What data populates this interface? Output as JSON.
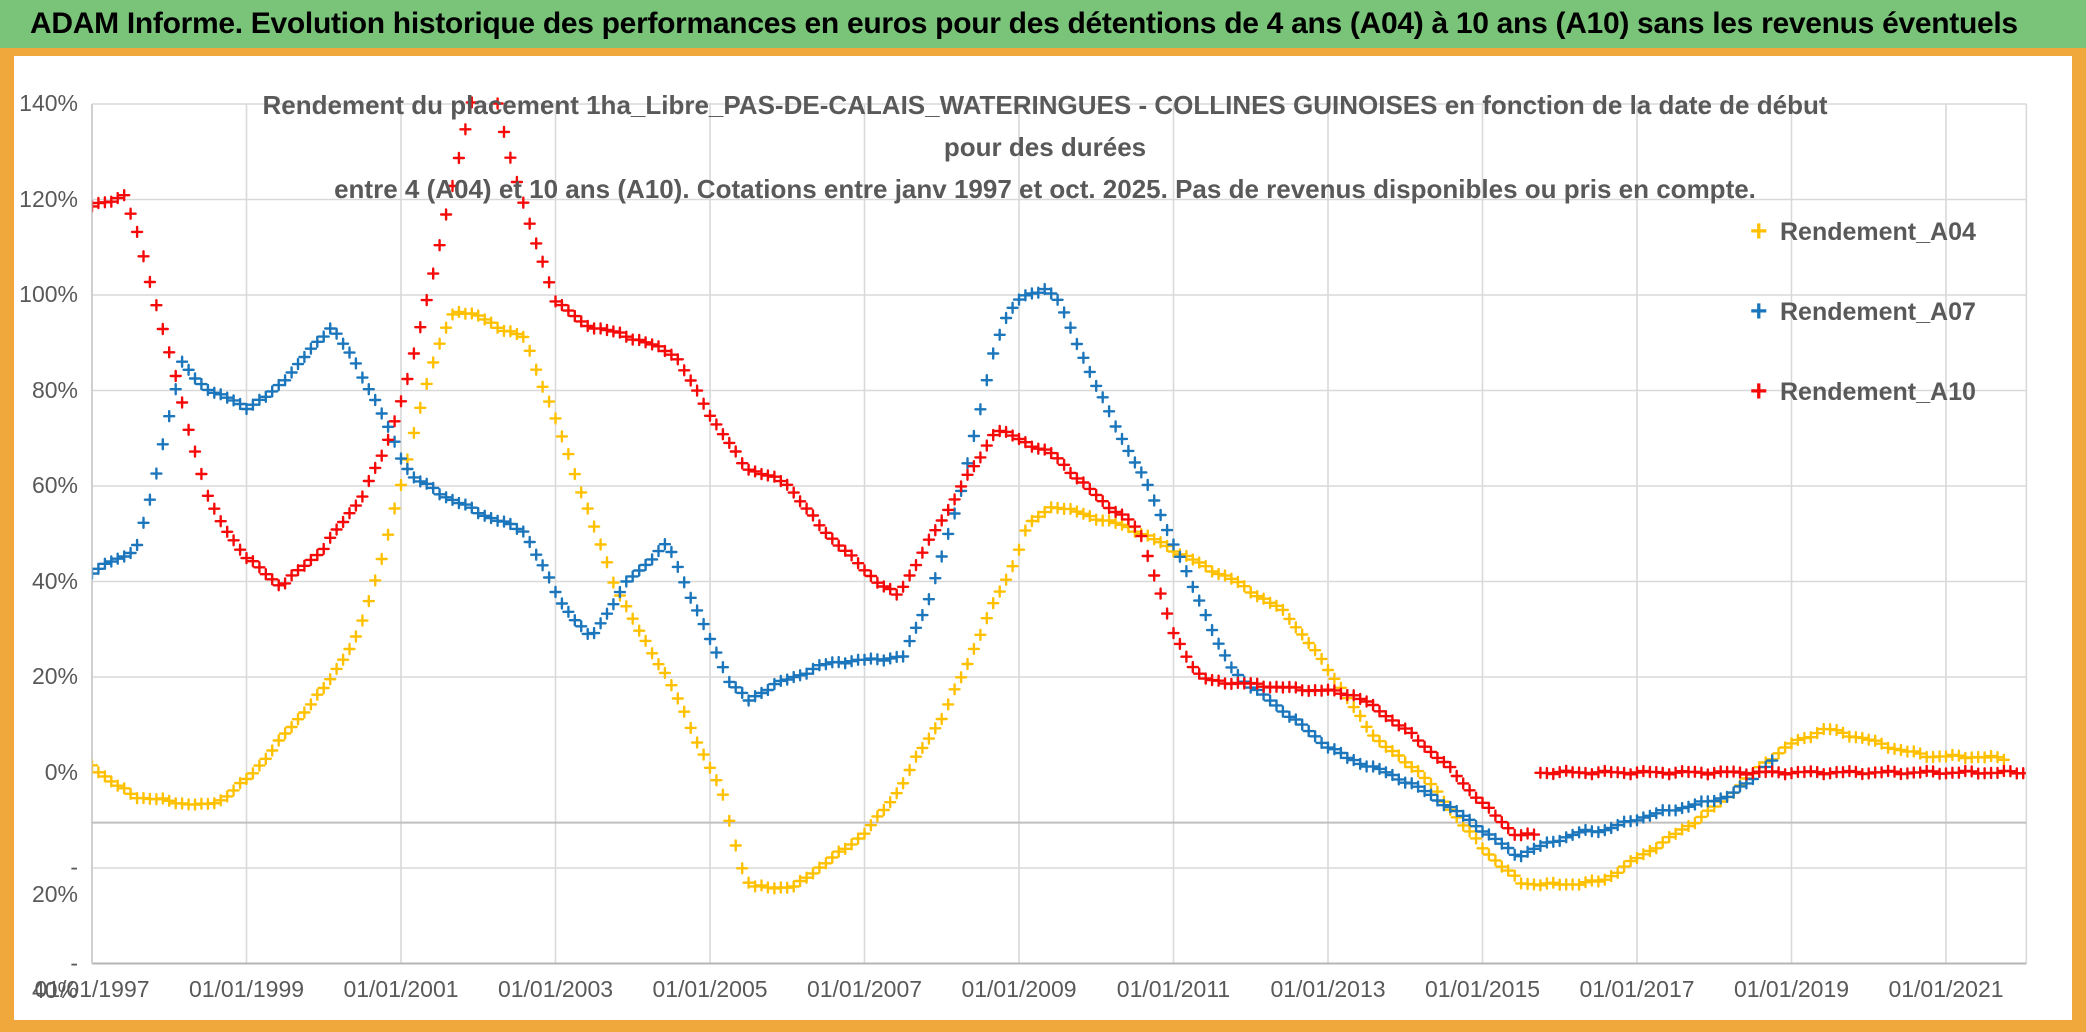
{
  "header": {
    "title": "ADAM Informe. Evolution historique des performances en euros pour des détentions de 4 ans (A04) à 10 ans (A10) sans les revenus éventuels",
    "bg_color": "#7AC47A"
  },
  "frame_color": "#F0A73C",
  "chart_data": {
    "type": "scatter",
    "marker": "+",
    "title_line1": "Rendement du placement 1ha_Libre_PAS-DE-CALAIS_WATERINGUES - COLLINES GUINOISES en fonction de la date de début pour des durées",
    "title_line2": "entre 4 (A04) et 10 ans (A10). Cotations entre janv 1997 et oct. 2025. Pas de revenus disponibles ou pris en compte.",
    "text_color": "#595959",
    "gridline_color": "#D9D9D9",
    "axis_line_color": "#BFBFBF",
    "legend_position": "right",
    "x_axis": {
      "tick_labels": [
        "01/01/1997",
        "01/01/1999",
        "01/01/2001",
        "01/01/2003",
        "01/01/2005",
        "01/01/2007",
        "01/01/2009",
        "01/01/2011",
        "01/01/2013",
        "01/01/2015",
        "01/01/2017",
        "01/01/2019",
        "01/01/2021"
      ],
      "tick_years": [
        1997,
        1999,
        2001,
        2003,
        2005,
        2007,
        2009,
        2011,
        2013,
        2015,
        2017,
        2019,
        2021
      ],
      "min_year": 1997.0,
      "max_year": 2022.04
    },
    "y_axis": {
      "tick_labels": [
        "140%",
        "120%",
        "100%",
        "80%",
        "60%",
        "40%",
        "20%",
        "0%",
        "- 20%",
        "- 40%"
      ],
      "tick_values": [
        140,
        120,
        100,
        80,
        60,
        40,
        20,
        0,
        -20,
        -40
      ],
      "gridline_values": [
        140,
        120,
        100,
        80,
        60,
        40,
        20,
        -20,
        -40
      ],
      "extra_axis_line_value": -10.5,
      "min": -40,
      "max": 140
    },
    "series": [
      {
        "name": "Rendement_A04",
        "color": "#FFC000",
        "segments": [
          [
            [
              1997.0,
              1.5
            ],
            [
              1997.3,
              -2.5
            ],
            [
              1997.55,
              -5
            ],
            [
              1998.0,
              -6
            ],
            [
              1998.45,
              -7
            ],
            [
              1998.7,
              -5.5
            ],
            [
              1999.0,
              -1.5
            ],
            [
              1999.3,
              4
            ],
            [
              1999.6,
              10
            ],
            [
              2000.0,
              17.5
            ],
            [
              2000.45,
              29
            ],
            [
              2000.7,
              42
            ],
            [
              2001.0,
              60
            ],
            [
              2001.3,
              80
            ],
            [
              2001.55,
              92
            ],
            [
              2001.7,
              97
            ],
            [
              2002.0,
              95.5
            ],
            [
              2002.3,
              93
            ],
            [
              2002.6,
              91
            ],
            [
              2003.0,
              74
            ],
            [
              2003.3,
              60.5
            ],
            [
              2003.75,
              40
            ],
            [
              2004.1,
              29
            ],
            [
              2004.45,
              20
            ],
            [
              2004.85,
              6
            ],
            [
              2005.15,
              -4
            ],
            [
              2005.45,
              -22
            ],
            [
              2005.55,
              -24
            ],
            [
              2006.1,
              -24
            ],
            [
              2006.4,
              -20
            ],
            [
              2006.75,
              -16
            ],
            [
              2007.0,
              -12.6
            ],
            [
              2007.2,
              -9
            ],
            [
              2007.45,
              -3.5
            ],
            [
              2007.65,
              2.5
            ],
            [
              2008.0,
              11.5
            ],
            [
              2008.3,
              21.5
            ],
            [
              2008.6,
              33
            ],
            [
              2008.9,
              42.5
            ],
            [
              2009.1,
              51.5
            ],
            [
              2009.45,
              56
            ],
            [
              2009.85,
              54
            ],
            [
              2010.45,
              51.2
            ],
            [
              2010.9,
              47.5
            ],
            [
              2011.4,
              43.2
            ],
            [
              2011.75,
              40.5
            ],
            [
              2012.1,
              37
            ],
            [
              2012.45,
              33.5
            ],
            [
              2012.85,
              25
            ],
            [
              2013.1,
              19.5
            ],
            [
              2013.35,
              13
            ],
            [
              2013.6,
              7.6
            ],
            [
              2013.85,
              4
            ],
            [
              2014.2,
              0
            ],
            [
              2014.5,
              -6
            ],
            [
              2015.0,
              -15.8
            ],
            [
              2015.5,
              -23.2
            ],
            [
              2016.0,
              -23.5
            ],
            [
              2016.55,
              -22.8
            ],
            [
              2017.0,
              -18
            ],
            [
              2017.4,
              -14
            ],
            [
              2017.8,
              -9.7
            ],
            [
              2018.1,
              -6
            ],
            [
              2018.45,
              -1
            ],
            [
              2018.7,
              2.6
            ],
            [
              2019.0,
              6
            ],
            [
              2019.45,
              9.2
            ],
            [
              2020.0,
              6.8
            ],
            [
              2020.45,
              4.5
            ],
            [
              2020.8,
              3.4
            ],
            [
              2021.4,
              3.3
            ],
            [
              2021.75,
              2.9
            ]
          ]
        ]
      },
      {
        "name": "Rendement_A07",
        "color": "#1B76BC",
        "segments": [
          [
            [
              1997.0,
              42
            ],
            [
              1997.3,
              44.5
            ],
            [
              1997.45,
              45.5
            ],
            [
              1997.6,
              48
            ],
            [
              1997.8,
              60
            ],
            [
              1998.0,
              75
            ],
            [
              1998.17,
              86
            ],
            [
              1998.35,
              82
            ],
            [
              1998.6,
              79.5
            ],
            [
              1999.0,
              76.5
            ],
            [
              1999.3,
              79
            ],
            [
              1999.7,
              86
            ],
            [
              2000.1,
              93.5
            ],
            [
              2000.4,
              86
            ],
            [
              2000.7,
              77
            ],
            [
              2001.0,
              66
            ],
            [
              2001.15,
              62
            ],
            [
              2001.5,
              58.5
            ],
            [
              2002.0,
              54.5
            ],
            [
              2002.6,
              50.5
            ],
            [
              2003.06,
              36
            ],
            [
              2003.45,
              28
            ],
            [
              2003.93,
              40
            ],
            [
              2004.45,
              48
            ],
            [
              2004.91,
              31
            ],
            [
              2005.26,
              19
            ],
            [
              2005.5,
              15
            ],
            [
              2005.82,
              18.4
            ],
            [
              2006.08,
              19.8
            ],
            [
              2006.4,
              22.2
            ],
            [
              2006.67,
              23.2
            ],
            [
              2007.0,
              23.5
            ],
            [
              2007.5,
              24.2
            ],
            [
              2007.85,
              37
            ],
            [
              2008.2,
              56
            ],
            [
              2008.5,
              76
            ],
            [
              2008.7,
              90
            ],
            [
              2008.85,
              96
            ],
            [
              2009.0,
              99
            ],
            [
              2009.35,
              101.5
            ],
            [
              2009.5,
              99
            ],
            [
              2009.75,
              90
            ],
            [
              2010.0,
              81
            ],
            [
              2010.3,
              71
            ],
            [
              2010.55,
              63.5
            ],
            [
              2010.7,
              59
            ],
            [
              2011.05,
              46
            ],
            [
              2011.25,
              39
            ],
            [
              2011.45,
              32
            ],
            [
              2011.6,
              26
            ],
            [
              2011.78,
              21.3
            ],
            [
              2012.0,
              18
            ],
            [
              2012.3,
              14.5
            ],
            [
              2012.65,
              10
            ],
            [
              2012.95,
              6
            ],
            [
              2013.25,
              3
            ],
            [
              2013.6,
              1
            ],
            [
              2014.1,
              -2.5
            ],
            [
              2014.6,
              -7.5
            ],
            [
              2015.0,
              -12
            ],
            [
              2015.45,
              -17.5
            ],
            [
              2015.9,
              -14.5
            ],
            [
              2016.3,
              -12.4
            ],
            [
              2016.6,
              -12
            ],
            [
              2017.0,
              -9.7
            ],
            [
              2017.4,
              -8
            ],
            [
              2017.8,
              -6.6
            ],
            [
              2018.2,
              -4.8
            ],
            [
              2018.45,
              -2
            ],
            [
              2018.6,
              0.5
            ],
            [
              2018.75,
              2.5
            ]
          ]
        ]
      },
      {
        "name": "Rendement_A10",
        "color": "#F50A0A",
        "segments": [
          [
            [
              1997.0,
              118.5
            ],
            [
              1997.2,
              119.5
            ],
            [
              1997.42,
              121
            ],
            [
              1997.6,
              112
            ],
            [
              1997.75,
              103
            ],
            [
              1998.0,
              88
            ],
            [
              1998.25,
              72
            ],
            [
              1998.5,
              58
            ],
            [
              1998.62,
              53.5
            ],
            [
              1999.0,
              45
            ],
            [
              1999.45,
              39
            ],
            [
              2000.0,
              47
            ],
            [
              2000.5,
              58
            ],
            [
              2000.8,
              68
            ],
            [
              2001.1,
              83
            ],
            [
              2001.35,
              100
            ],
            [
              2001.7,
              125
            ],
            [
              2001.95,
              143
            ],
            [
              2002.05,
              148
            ],
            [
              2002.15,
              148
            ],
            [
              2002.3,
              136
            ],
            [
              2002.55,
              121
            ],
            [
              2002.7,
              113
            ],
            [
              2003.0,
              99
            ],
            [
              2003.35,
              94
            ],
            [
              2003.8,
              92
            ],
            [
              2004.1,
              90.5
            ],
            [
              2004.55,
              87.5
            ],
            [
              2005.0,
              75
            ],
            [
              2005.45,
              64
            ],
            [
              2006.0,
              60.5
            ],
            [
              2006.4,
              52
            ],
            [
              2006.9,
              44
            ],
            [
              2007.2,
              39.5
            ],
            [
              2007.43,
              37
            ],
            [
              2007.8,
              47.5
            ],
            [
              2008.1,
              55.5
            ],
            [
              2008.25,
              60
            ],
            [
              2008.5,
              66
            ],
            [
              2008.7,
              72
            ],
            [
              2009.45,
              66.5
            ],
            [
              2009.8,
              61
            ],
            [
              2010.1,
              56.5
            ],
            [
              2010.45,
              52.5
            ],
            [
              2010.6,
              49
            ],
            [
              2011.0,
              29
            ],
            [
              2011.3,
              21
            ],
            [
              2011.45,
              19.2
            ],
            [
              2012.0,
              18.5
            ],
            [
              2012.6,
              17.5
            ],
            [
              2013.0,
              17.1
            ],
            [
              2013.35,
              16.2
            ],
            [
              2013.7,
              12.6
            ],
            [
              2014.05,
              8.4
            ],
            [
              2014.4,
              3.5
            ],
            [
              2014.57,
              1.0
            ],
            [
              2015.0,
              -6.5
            ],
            [
              2015.45,
              -13.3
            ],
            [
              2015.7,
              -13
            ]
          ],
          [
            [
              2015.75,
              0
            ],
            [
              2022.04,
              0
            ]
          ]
        ]
      }
    ],
    "legend": [
      {
        "label": "Rendement_A04",
        "color": "#FFC000",
        "marker": "+"
      },
      {
        "label": "Rendement_A07",
        "color": "#1B76BC",
        "marker": "+"
      },
      {
        "label": "Rendement_A10",
        "color": "#F50A0A",
        "marker": "+"
      }
    ]
  }
}
